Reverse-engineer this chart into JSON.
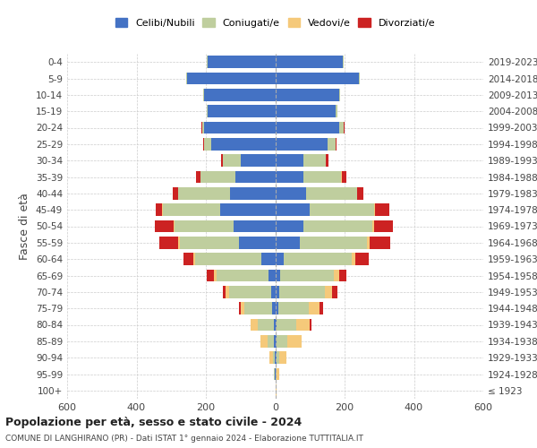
{
  "age_groups": [
    "100+",
    "95-99",
    "90-94",
    "85-89",
    "80-84",
    "75-79",
    "70-74",
    "65-69",
    "60-64",
    "55-59",
    "50-54",
    "45-49",
    "40-44",
    "35-39",
    "30-34",
    "25-29",
    "20-24",
    "15-19",
    "10-14",
    "5-9",
    "0-4"
  ],
  "birth_years": [
    "≤ 1923",
    "1924-1928",
    "1929-1933",
    "1934-1938",
    "1939-1943",
    "1944-1948",
    "1949-1953",
    "1954-1958",
    "1959-1963",
    "1964-1968",
    "1969-1973",
    "1974-1978",
    "1979-1983",
    "1984-1988",
    "1989-1993",
    "1994-1998",
    "1999-2003",
    "2004-2008",
    "2009-2013",
    "2014-2018",
    "2019-2023"
  ],
  "colors": {
    "celibi": "#4472C4",
    "coniugati": "#BFCE9E",
    "vedovi": "#F5C97A",
    "divorziati": "#CC2222"
  },
  "males": {
    "celibi": [
      0,
      1,
      2,
      3,
      5,
      8,
      12,
      20,
      40,
      105,
      120,
      160,
      130,
      115,
      100,
      185,
      205,
      195,
      205,
      255,
      195
    ],
    "coniugati": [
      0,
      2,
      5,
      20,
      45,
      80,
      120,
      150,
      190,
      170,
      170,
      165,
      150,
      100,
      50,
      20,
      5,
      3,
      2,
      2,
      2
    ],
    "vedovi": [
      0,
      2,
      10,
      20,
      20,
      12,
      12,
      8,
      5,
      4,
      3,
      2,
      1,
      1,
      0,
      0,
      0,
      0,
      0,
      0,
      0
    ],
    "divorziati": [
      0,
      0,
      0,
      0,
      2,
      5,
      8,
      20,
      30,
      55,
      55,
      18,
      15,
      12,
      5,
      3,
      2,
      0,
      0,
      0,
      0
    ]
  },
  "females": {
    "celibi": [
      1,
      2,
      3,
      5,
      5,
      8,
      12,
      15,
      25,
      70,
      80,
      100,
      90,
      80,
      80,
      150,
      185,
      175,
      185,
      240,
      195
    ],
    "coniugati": [
      0,
      2,
      8,
      30,
      55,
      90,
      130,
      155,
      195,
      195,
      200,
      185,
      145,
      110,
      65,
      25,
      12,
      5,
      3,
      3,
      2
    ],
    "vedovi": [
      2,
      8,
      20,
      40,
      40,
      30,
      22,
      15,
      10,
      7,
      5,
      3,
      2,
      1,
      0,
      0,
      0,
      0,
      0,
      0,
      0
    ],
    "divorziati": [
      0,
      0,
      0,
      2,
      5,
      10,
      15,
      20,
      40,
      60,
      55,
      40,
      18,
      15,
      8,
      3,
      2,
      0,
      0,
      0,
      0
    ]
  },
  "title": "Popolazione per età, sesso e stato civile - 2024",
  "subtitle": "COMUNE DI LANGHIRANO (PR) - Dati ISTAT 1° gennaio 2024 - Elaborazione TUTTITALIA.IT",
  "ylabel_left": "Fasce di età",
  "xlim": 600,
  "legend_labels": [
    "Celibi/Nubili",
    "Coniugati/e",
    "Vedovi/e",
    "Divorziati/e"
  ],
  "background_color": "#FFFFFF",
  "grid_color": "#CCCCCC"
}
